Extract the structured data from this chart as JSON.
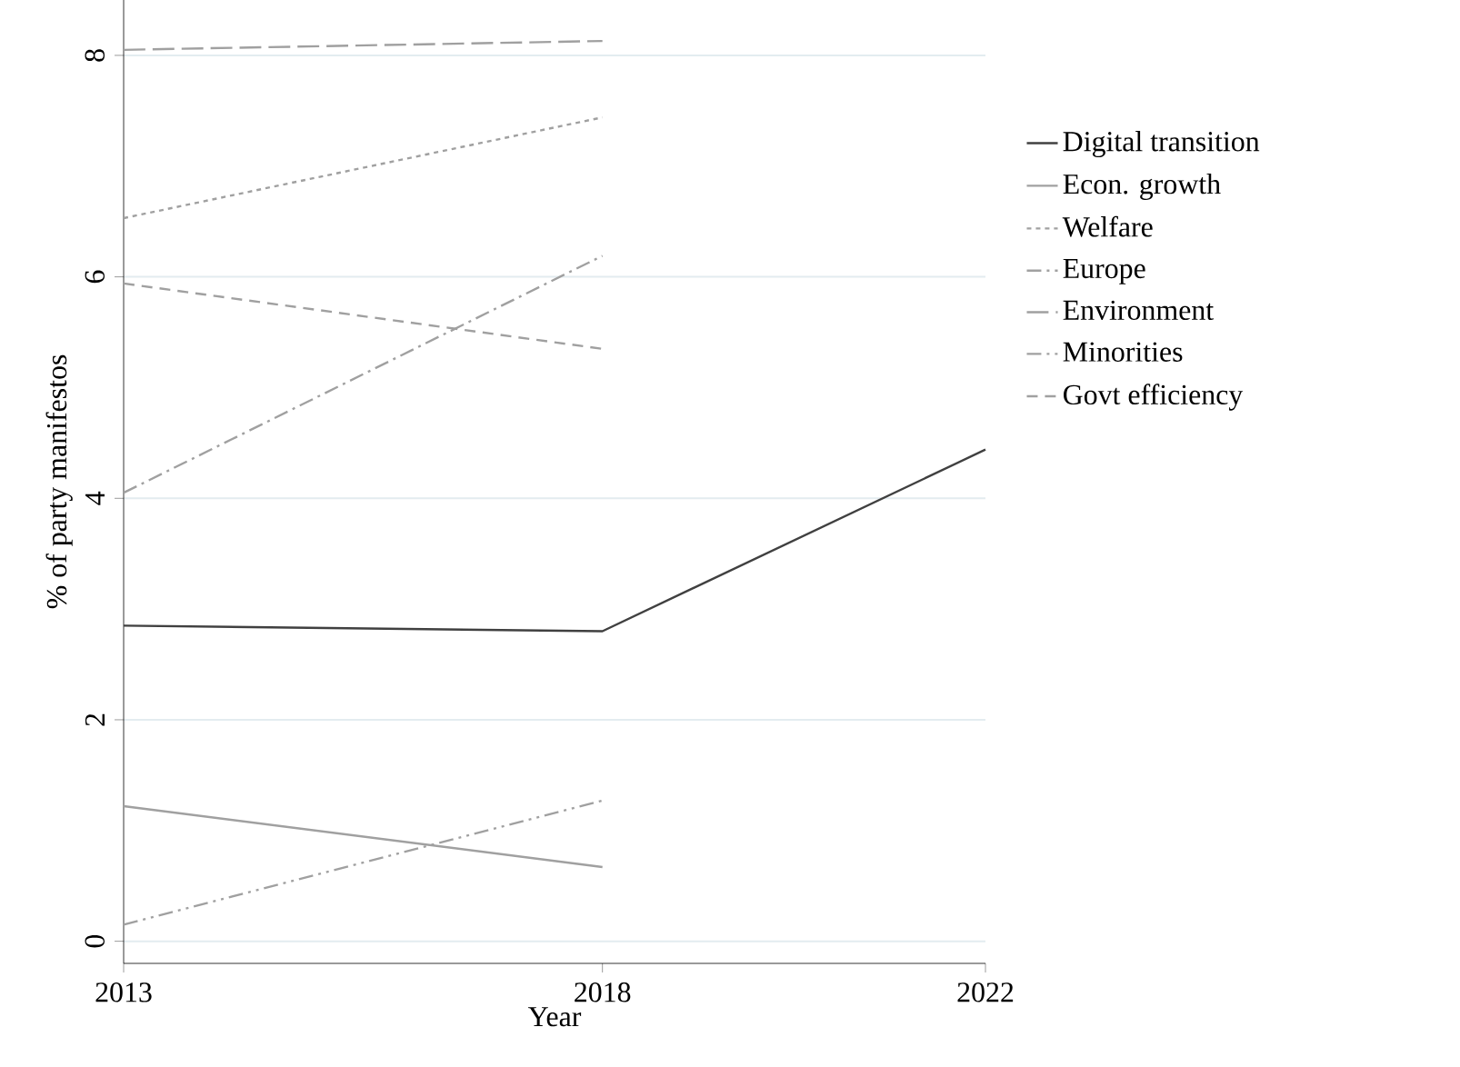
{
  "chart_data": {
    "type": "line",
    "xlabel": "Year",
    "ylabel": "% of party manifestos",
    "x": [
      2013,
      2018,
      2022
    ],
    "xlim": [
      2013,
      2022
    ],
    "xticks": [
      2013,
      2018,
      2022
    ],
    "ylim": [
      -0.2,
      8.5
    ],
    "yticks": [
      0,
      2,
      4,
      6,
      8
    ],
    "grid": "y",
    "legend": "right",
    "marker": "none",
    "series": [
      {
        "name": "Digital transition",
        "color": "#404040",
        "line_style": "solid",
        "values": [
          2.85,
          2.8,
          4.44
        ]
      },
      {
        "name": "Econ. growth",
        "color": "#a0a0a0",
        "line_style": "solid",
        "values": [
          1.22,
          0.67,
          null
        ]
      },
      {
        "name": "Welfare",
        "color": "#a0a0a0",
        "line_style": "dotted",
        "values": [
          6.53,
          7.44,
          null
        ]
      },
      {
        "name": "Europe",
        "color": "#a0a0a0",
        "line_style": "dashdot",
        "values": [
          4.05,
          6.19,
          null
        ]
      },
      {
        "name": "Environment",
        "color": "#a0a0a0",
        "line_style": "longdash",
        "values": [
          8.05,
          8.13,
          null
        ]
      },
      {
        "name": "Minorities",
        "color": "#a0a0a0",
        "line_style": "dashdotdot",
        "values": [
          0.15,
          1.27,
          null
        ]
      },
      {
        "name": "Govt efficiency",
        "color": "#a0a0a0",
        "line_style": "dashed",
        "values": [
          5.94,
          5.35,
          null
        ]
      }
    ]
  }
}
